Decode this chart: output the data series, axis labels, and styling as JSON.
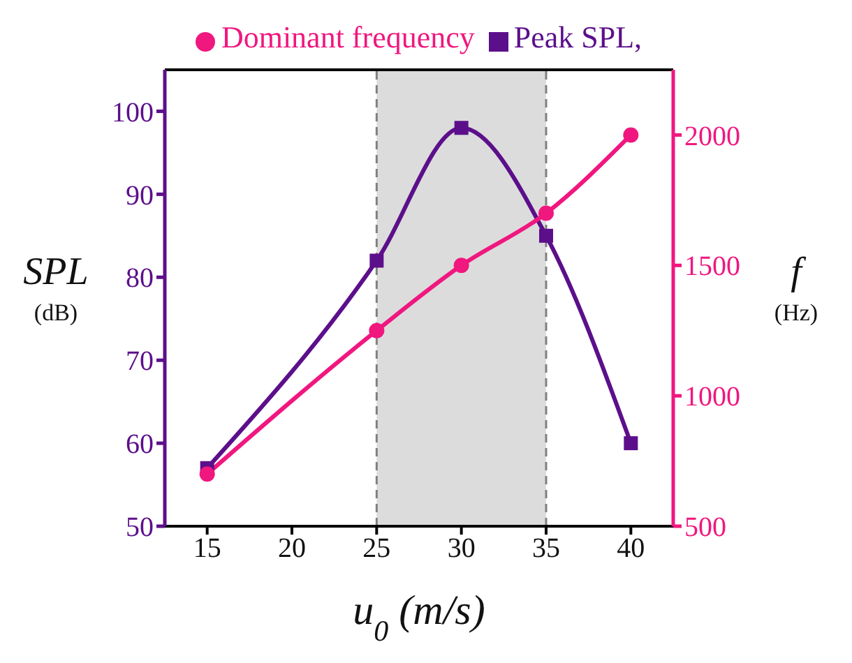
{
  "chart_data": {
    "type": "line",
    "xlabel": "u$_{0}$ (m/s)",
    "ylabel": "SPL (dB)",
    "y2label": "f (Hz)",
    "x": [
      15,
      25,
      30,
      35,
      40
    ],
    "series": [
      {
        "name": "Peak SPL,",
        "color": "#5c0f8b",
        "values": [
          57,
          82,
          98,
          85,
          60
        ],
        "marker": "square"
      },
      {
        "name": "Dominant frequency",
        "color": "#f0177f",
        "values": [
          700,
          1250,
          1500,
          1700,
          2000
        ],
        "axis": "y2",
        "marker": "circle"
      }
    ],
    "xlim": [
      12.5,
      42.5
    ],
    "xticks": [
      15,
      20,
      25,
      30,
      35,
      40
    ],
    "ylim": [
      50,
      105
    ],
    "yticks": [
      50,
      60,
      70,
      80,
      90,
      100
    ],
    "y2lim": [
      500,
      2250
    ],
    "y2ticks": [
      500,
      1000,
      1500,
      2000
    ],
    "bands": [
      {
        "axis": "x",
        "from": 25,
        "to": 35,
        "color": "#dcdcdc"
      }
    ],
    "ref_lines": [
      {
        "axis": "x",
        "value": 25,
        "color": "#808080",
        "line_style": "dashed"
      },
      {
        "axis": "x",
        "value": 35,
        "color": "#808080",
        "line_style": "dashed"
      }
    ],
    "grid": false,
    "legend": "top",
    "line_style": "solid"
  }
}
